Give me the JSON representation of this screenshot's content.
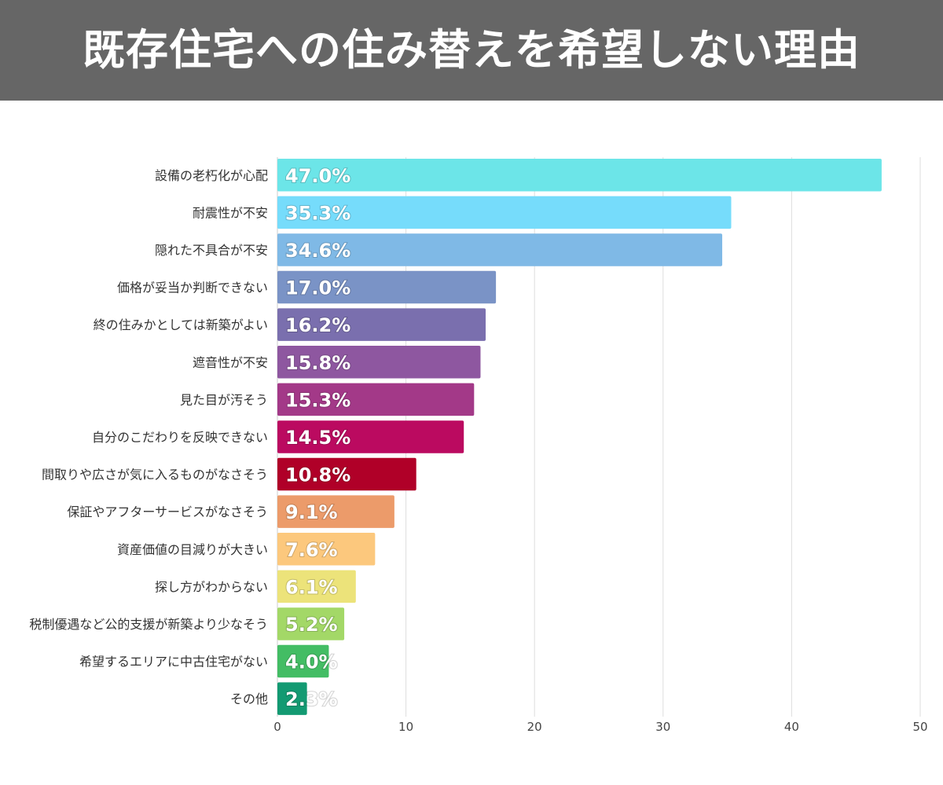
{
  "header": {
    "title": "既存住宅への住み替えを希望しない理由"
  },
  "chart_data": {
    "type": "bar",
    "orientation": "horizontal",
    "title": "既存住宅への住み替えを希望しない理由",
    "categories": [
      "設備の老朽化が心配",
      "耐震性が不安",
      "隠れた不具合が不安",
      "価格が妥当か判断できない",
      "終の住みかとしては新築がよい",
      "遮音性が不安",
      "見た目が汚そう",
      "自分のこだわりを反映できない",
      "間取りや広さが気に入るものがなさそう",
      "保証やアフターサービスがなさそう",
      "資産価値の目減りが大きい",
      "探し方がわからない",
      "税制優遇など公的支援が新築より少なそう",
      "希望するエリアに中古住宅がない",
      "その他"
    ],
    "values": [
      47.0,
      35.3,
      34.6,
      17.0,
      16.2,
      15.8,
      15.3,
      14.5,
      10.8,
      9.1,
      7.6,
      6.1,
      5.2,
      4.0,
      2.3
    ],
    "value_labels": [
      "47.0%",
      "35.3%",
      "34.6%",
      "17.0%",
      "16.2%",
      "15.8%",
      "15.3%",
      "14.5%",
      "10.8%",
      "9.1%",
      "7.6%",
      "6.1%",
      "5.2%",
      "4.0%",
      "2.3%"
    ],
    "colors": [
      "#6ce5e8",
      "#76dcfb",
      "#7fb9e6",
      "#7a93c6",
      "#7a6fae",
      "#8e57a0",
      "#a33988",
      "#bb0a60",
      "#b00028",
      "#ec9b6a",
      "#fcc87d",
      "#ece37a",
      "#a3d867",
      "#43bd64",
      "#139a72"
    ],
    "xlim": [
      0,
      50
    ],
    "xticks": [
      0,
      10,
      20,
      30,
      40,
      50
    ],
    "xlabel": "",
    "ylabel": "",
    "grid": true,
    "legend": "none"
  }
}
